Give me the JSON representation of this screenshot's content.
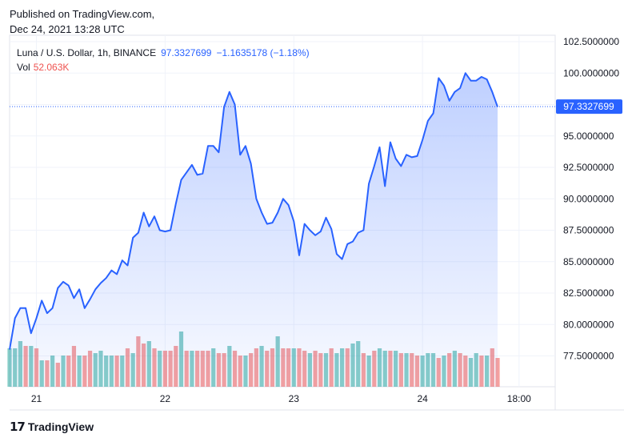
{
  "header": {
    "published": "Published on TradingView.com,",
    "timestamp": "Dec 24, 2021 13:28 UTC"
  },
  "legend": {
    "symbol": "Luna / U.S. Dollar, 1h, BINANCE",
    "last": "97.3327699",
    "change": "−1.1635178 (−1.18%)",
    "vol_label": "Vol",
    "vol_value": "52.063K"
  },
  "footer": {
    "logo": "17",
    "brand": "TradingView"
  },
  "colors": {
    "line": "#2962ff",
    "fill": "#2962ff",
    "vol_up": "#26a69a",
    "vol_down": "#ef5350",
    "grid": "#f0f3fa",
    "badge": "#2962ff"
  },
  "chart_data": {
    "type": "area",
    "title": "Luna / U.S. Dollar, 1h, BINANCE",
    "ylim": [
      75.0,
      103.5
    ],
    "y_ticks": [
      "102.5000000",
      "100.0000000",
      "97.5000000",
      "95.0000000",
      "92.5000000",
      "90.0000000",
      "87.5000000",
      "85.0000000",
      "82.5000000",
      "80.0000000",
      "77.5000000"
    ],
    "y_tick_values": [
      102.5,
      100,
      97.5,
      95,
      92.5,
      90,
      87.5,
      85,
      82.5,
      80,
      77.5
    ],
    "x_ticks": [
      {
        "label": "21",
        "hour": 5
      },
      {
        "label": "22",
        "hour": 29
      },
      {
        "label": "23",
        "hour": 53
      },
      {
        "label": "24",
        "hour": 77
      },
      {
        "label": "18:00",
        "hour": 95
      }
    ],
    "last_price": 97.3327699,
    "last_price_label": "97.3327699",
    "series": [
      {
        "name": "Price",
        "values": [
          78.0,
          80.5,
          81.3,
          81.3,
          79.3,
          80.5,
          81.9,
          80.9,
          81.3,
          82.9,
          83.4,
          83.1,
          82.1,
          82.8,
          81.3,
          82.0,
          82.8,
          83.3,
          83.7,
          84.3,
          84.0,
          85.1,
          84.7,
          86.9,
          87.3,
          88.9,
          87.8,
          88.6,
          87.5,
          87.4,
          87.5,
          89.6,
          91.5,
          92.1,
          92.7,
          91.9,
          92.0,
          94.2,
          94.2,
          93.7,
          97.3,
          98.5,
          97.5,
          93.5,
          94.2,
          92.8,
          90.0,
          88.9,
          88.0,
          88.1,
          88.9,
          90.0,
          89.5,
          88.2,
          85.5,
          88.0,
          87.5,
          87.1,
          87.4,
          88.5,
          87.6,
          85.6,
          85.2,
          86.4,
          86.6,
          87.3,
          87.5,
          91.2,
          92.6,
          94.1,
          91.0,
          94.5,
          93.2,
          92.6,
          93.5,
          93.3,
          93.4,
          94.7,
          96.2,
          96.8,
          99.6,
          99.0,
          97.8,
          98.5,
          98.8,
          100.0,
          99.4,
          99.4,
          99.7,
          99.5,
          98.5,
          97.3
        ]
      },
      {
        "name": "Volume",
        "values": [
          16,
          16,
          19,
          17,
          17,
          16,
          11,
          11,
          13,
          10,
          13,
          13,
          17,
          13,
          13,
          15,
          14,
          15,
          13,
          13,
          13,
          13,
          16,
          14,
          21,
          18,
          19,
          16,
          15,
          15,
          15,
          17,
          23,
          15,
          15,
          15,
          15,
          15,
          16,
          14,
          14,
          17,
          15,
          13,
          13,
          14,
          16,
          17,
          15,
          16,
          21,
          16,
          16,
          16,
          16,
          15,
          14,
          15,
          14,
          14,
          16,
          14,
          16,
          16,
          18,
          19,
          14,
          13,
          15,
          16,
          15,
          15,
          15,
          14,
          14,
          14,
          13,
          13,
          14,
          14,
          12,
          13,
          14,
          15,
          14,
          13,
          12,
          14,
          13,
          13,
          16,
          12
        ]
      },
      {
        "name": "Volume direction",
        "values": [
          1,
          1,
          1,
          -1,
          1,
          -1,
          1,
          -1,
          1,
          -1,
          1,
          -1,
          -1,
          1,
          -1,
          -1,
          1,
          1,
          1,
          1,
          -1,
          1,
          -1,
          1,
          -1,
          -1,
          1,
          -1,
          1,
          -1,
          -1,
          -1,
          1,
          -1,
          1,
          -1,
          -1,
          -1,
          1,
          -1,
          -1,
          1,
          -1,
          -1,
          1,
          -1,
          -1,
          1,
          -1,
          -1,
          1,
          -1,
          -1,
          1,
          -1,
          -1,
          1,
          -1,
          -1,
          1,
          -1,
          1,
          1,
          -1,
          1,
          1,
          -1,
          1,
          -1,
          1,
          1,
          -1,
          1,
          -1,
          1,
          -1,
          -1,
          1,
          1,
          1,
          -1,
          1,
          -1,
          1,
          -1,
          -1,
          1,
          1,
          -1,
          1,
          -1,
          -1
        ]
      }
    ]
  }
}
